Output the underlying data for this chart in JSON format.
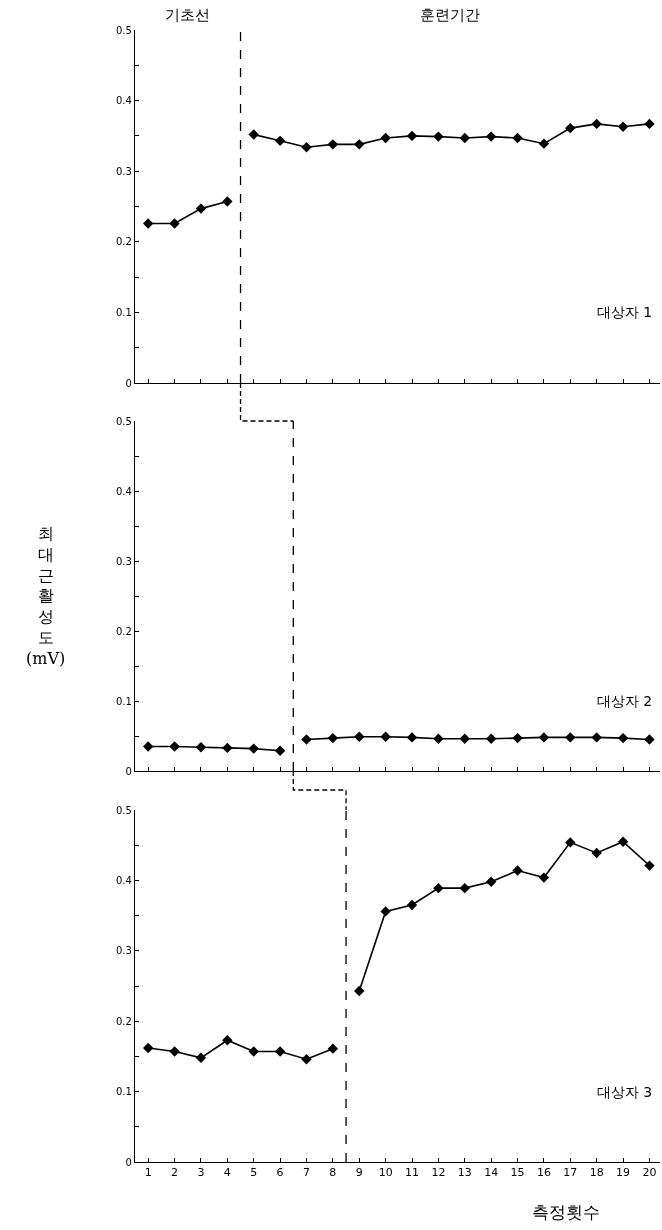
{
  "chart_data": [
    {
      "type": "line",
      "title": "대상자 1",
      "annotations": [
        "기초선",
        "훈련기간"
      ],
      "series": [
        {
          "color": "#000000",
          "x": [
            1,
            2,
            3,
            4
          ],
          "values": [
            0.226,
            0.226,
            0.247,
            0.257
          ]
        },
        {
          "color": "#000000",
          "x": [
            5,
            6,
            7,
            8,
            9,
            10,
            11,
            12,
            13,
            14,
            15,
            16,
            17,
            18,
            19,
            20
          ],
          "values": [
            0.352,
            0.343,
            0.334,
            0.338,
            0.338,
            0.347,
            0.35,
            0.349,
            0.347,
            0.349,
            0.347,
            0.339,
            0.361,
            0.367,
            0.363,
            0.367
          ]
        }
      ],
      "xlim": [
        0.5,
        20.4
      ],
      "xticks": [
        1,
        2,
        3,
        4,
        5,
        6,
        7,
        8,
        9,
        10,
        11,
        12,
        13,
        14,
        15,
        16,
        17,
        18,
        19,
        20
      ],
      "ylim": [
        0,
        0.5
      ],
      "yticks": [
        0,
        {
          "value": 0.05,
          "label": null
        },
        0.1,
        {
          "value": 0.15,
          "label": null
        },
        0.2,
        {
          "value": 0.25,
          "label": null
        },
        0.3,
        {
          "value": 0.35,
          "label": null
        },
        0.4,
        {
          "value": 0.45,
          "label": null
        },
        0.5
      ],
      "ref_lines": [
        {
          "axis": "x",
          "value": 4.5,
          "line_style": "dashed",
          "color": "#000000"
        }
      ],
      "tick_labels": "y",
      "grid": false,
      "marker": "diamond",
      "line_style": "solid"
    },
    {
      "type": "line",
      "title": "대상자 2",
      "ylabel": "최\n대\n근\n활\n성\n도\n(mV)",
      "series": [
        {
          "color": "#000000",
          "x": [
            1,
            2,
            3,
            4,
            5,
            6
          ],
          "values": [
            0.035,
            0.035,
            0.034,
            0.033,
            0.032,
            0.029
          ]
        },
        {
          "color": "#000000",
          "x": [
            7,
            8,
            9,
            10,
            11,
            12,
            13,
            14,
            15,
            16,
            17,
            18,
            19,
            20
          ],
          "values": [
            0.045,
            0.047,
            0.049,
            0.049,
            0.048,
            0.046,
            0.046,
            0.046,
            0.047,
            0.048,
            0.048,
            0.048,
            0.047,
            0.045
          ]
        }
      ],
      "xlim": [
        0.5,
        20.4
      ],
      "xticks": [
        1,
        2,
        3,
        4,
        5,
        6,
        7,
        8,
        9,
        10,
        11,
        12,
        13,
        14,
        15,
        16,
        17,
        18,
        19,
        20
      ],
      "ylim": [
        0,
        0.5
      ],
      "yticks": [
        0,
        {
          "value": 0.05,
          "label": null
        },
        0.1,
        {
          "value": 0.15,
          "label": null
        },
        0.2,
        {
          "value": 0.25,
          "label": null
        },
        0.3,
        {
          "value": 0.35,
          "label": null
        },
        0.4,
        {
          "value": 0.45,
          "label": null
        },
        0.5
      ],
      "ref_lines": [
        {
          "axis": "x",
          "value": 6.5,
          "line_style": "dashed",
          "color": "#000000"
        }
      ],
      "tick_labels": "y",
      "grid": false,
      "marker": "diamond",
      "line_style": "solid"
    },
    {
      "type": "line",
      "title": "대상자 3",
      "xlabel": "측정횟수",
      "series": [
        {
          "color": "#000000",
          "x": [
            1,
            2,
            3,
            4,
            5,
            6,
            7,
            8
          ],
          "values": [
            0.162,
            0.157,
            0.148,
            0.173,
            0.157,
            0.157,
            0.146,
            0.161
          ]
        },
        {
          "color": "#000000",
          "x": [
            9,
            10,
            11,
            12,
            13,
            14,
            15,
            16,
            17,
            18,
            19,
            20
          ],
          "values": [
            0.243,
            0.356,
            0.365,
            0.389,
            0.389,
            0.398,
            0.414,
            0.404,
            0.454,
            0.439,
            0.455,
            0.421
          ]
        }
      ],
      "xlim": [
        0.5,
        20.4
      ],
      "xticks": [
        1,
        2,
        3,
        4,
        5,
        6,
        7,
        8,
        9,
        10,
        11,
        12,
        13,
        14,
        15,
        16,
        17,
        18,
        19,
        20
      ],
      "ylim": [
        0,
        0.5
      ],
      "yticks": [
        0,
        {
          "value": 0.05,
          "label": null
        },
        0.1,
        {
          "value": 0.15,
          "label": null
        },
        0.2,
        {
          "value": 0.25,
          "label": null
        },
        0.3,
        {
          "value": 0.35,
          "label": null
        },
        0.4,
        {
          "value": 0.45,
          "label": null
        },
        0.5
      ],
      "ref_lines": [
        {
          "axis": "x",
          "value": 8.5,
          "line_style": "dashed",
          "color": "#000000"
        }
      ],
      "grid": false,
      "marker": "diamond",
      "line_style": "solid"
    }
  ]
}
